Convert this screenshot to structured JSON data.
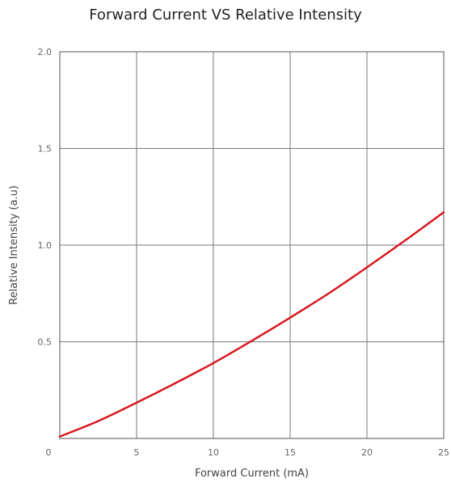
{
  "chart_data": {
    "type": "line",
    "title": "Forward Current VS Relative Intensity",
    "xlabel": "Forward Current (mA)",
    "ylabel": "Relative Intensity (a.u)",
    "xlim": [
      0,
      25
    ],
    "ylim": [
      0,
      2.0
    ],
    "x_ticks": [
      "0",
      "5",
      "10",
      "15",
      "20",
      "25"
    ],
    "y_ticks": [
      "0.5",
      "1.0",
      "1.5",
      "2.0"
    ],
    "grid": true,
    "series": [
      {
        "color": "#d7191f",
        "x": [
          0,
          2.5,
          5,
          7.5,
          10,
          12.5,
          15,
          17.5,
          20,
          22.5,
          25
        ],
        "y": [
          0.01,
          0.09,
          0.185,
          0.285,
          0.39,
          0.505,
          0.625,
          0.75,
          0.885,
          1.025,
          1.17
        ]
      }
    ]
  }
}
